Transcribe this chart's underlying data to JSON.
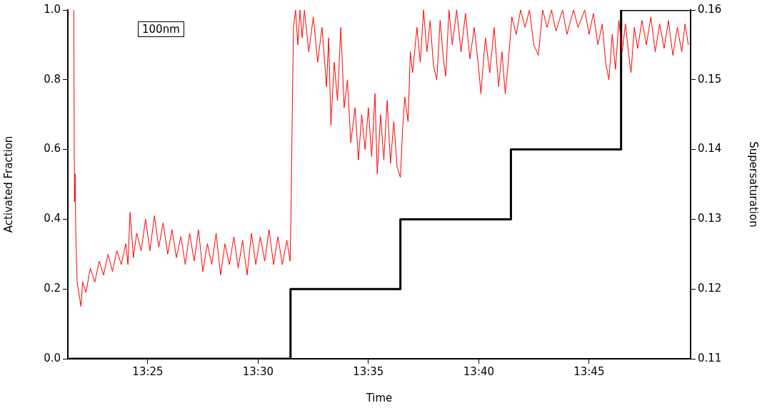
{
  "chart_data": {
    "type": "line",
    "xlabel": "Time",
    "ylabel": "Activated Fraction",
    "y2label": "Supersaturation",
    "annotations": [
      "100nm"
    ],
    "xlim": [
      13.3563,
      13.8267
    ],
    "xticks": [
      {
        "value": 13.4167,
        "label": "13:25"
      },
      {
        "value": 13.5,
        "label": "13:30"
      },
      {
        "value": 13.5833,
        "label": "13:35"
      },
      {
        "value": 13.6667,
        "label": "13:40"
      },
      {
        "value": 13.75,
        "label": "13:45"
      }
    ],
    "ylim": [
      0,
      1
    ],
    "yticks": [
      {
        "value": 0,
        "label": "0.0"
      },
      {
        "value": 0.2,
        "label": "0.2"
      },
      {
        "value": 0.4,
        "label": "0.4"
      },
      {
        "value": 0.6,
        "label": "0.6"
      },
      {
        "value": 0.8,
        "label": "0.8"
      },
      {
        "value": 1,
        "label": "1.0"
      }
    ],
    "y2lim": [
      0.11,
      0.16
    ],
    "y2ticks": [
      0.11,
      0.12,
      0.13,
      0.14,
      0.15,
      0.16
    ],
    "grid": false,
    "legend": false,
    "marker": "none",
    "line_style": "solid",
    "series": [
      {
        "color": "#ff0000",
        "x": [
          13.3608,
          13.3613,
          13.3618,
          13.3623,
          13.3633,
          13.365,
          13.3662,
          13.3675,
          13.37,
          13.3733,
          13.3767,
          13.38,
          13.3833,
          13.3867,
          13.39,
          13.3933,
          13.3967,
          13.4,
          13.4017,
          13.4033,
          13.4058,
          13.4083,
          13.4117,
          13.415,
          13.4183,
          13.4217,
          13.425,
          13.4283,
          13.4317,
          13.435,
          13.4383,
          13.4417,
          13.445,
          13.4483,
          13.4517,
          13.455,
          13.4583,
          13.4617,
          13.465,
          13.4683,
          13.4717,
          13.475,
          13.4783,
          13.4817,
          13.485,
          13.4883,
          13.4917,
          13.495,
          13.4983,
          13.5017,
          13.505,
          13.5083,
          13.5117,
          13.515,
          13.5183,
          13.5217,
          13.5242,
          13.525,
          13.5258,
          13.5267,
          13.5283,
          13.53,
          13.5317,
          13.5333,
          13.535,
          13.5383,
          13.5417,
          13.545,
          13.5483,
          13.5517,
          13.5533,
          13.555,
          13.5575,
          13.56,
          13.5625,
          13.565,
          13.5675,
          13.57,
          13.5733,
          13.5758,
          13.5783,
          13.5808,
          13.5833,
          13.5858,
          13.5883,
          13.59,
          13.5925,
          13.595,
          13.5975,
          13.6,
          13.6025,
          13.605,
          13.6075,
          13.6092,
          13.6108,
          13.6133,
          13.615,
          13.6167,
          13.62,
          13.6225,
          13.625,
          13.6275,
          13.63,
          13.6325,
          13.635,
          13.6375,
          13.64,
          13.6417,
          13.6442,
          13.6467,
          13.65,
          13.6533,
          13.6567,
          13.66,
          13.6633,
          13.6667,
          13.6683,
          13.6717,
          13.675,
          13.6783,
          13.6817,
          13.6842,
          13.6867,
          13.6892,
          13.6917,
          13.695,
          13.6983,
          13.7017,
          13.705,
          13.7083,
          13.7117,
          13.715,
          13.7183,
          13.7217,
          13.725,
          13.73,
          13.7333,
          13.7383,
          13.7417,
          13.7467,
          13.75,
          13.7533,
          13.7567,
          13.76,
          13.7625,
          13.765,
          13.7675,
          13.77,
          13.7725,
          13.775,
          13.7775,
          13.78,
          13.7817,
          13.7842,
          13.7867,
          13.79,
          13.7933,
          13.7967,
          13.8,
          13.8033,
          13.8067,
          13.81,
          13.8133,
          13.8167,
          13.82,
          13.8225,
          13.825
        ],
        "values": [
          1.0,
          0.45,
          0.53,
          0.36,
          0.22,
          0.18,
          0.15,
          0.22,
          0.19,
          0.26,
          0.22,
          0.28,
          0.24,
          0.3,
          0.25,
          0.31,
          0.27,
          0.33,
          0.27,
          0.42,
          0.29,
          0.36,
          0.31,
          0.4,
          0.31,
          0.41,
          0.32,
          0.39,
          0.3,
          0.37,
          0.29,
          0.35,
          0.27,
          0.36,
          0.28,
          0.37,
          0.25,
          0.33,
          0.27,
          0.36,
          0.24,
          0.33,
          0.27,
          0.35,
          0.26,
          0.34,
          0.24,
          0.36,
          0.27,
          0.35,
          0.28,
          0.37,
          0.27,
          0.35,
          0.27,
          0.34,
          0.28,
          0.45,
          0.7,
          0.95,
          1.0,
          0.9,
          1.0,
          0.92,
          1.0,
          0.88,
          0.98,
          0.85,
          0.95,
          0.78,
          0.92,
          0.67,
          0.85,
          0.74,
          0.95,
          0.72,
          0.8,
          0.62,
          0.72,
          0.57,
          0.7,
          0.6,
          0.72,
          0.58,
          0.76,
          0.53,
          0.7,
          0.57,
          0.74,
          0.56,
          0.68,
          0.55,
          0.52,
          0.66,
          0.75,
          0.68,
          0.88,
          0.82,
          0.95,
          0.85,
          1.0,
          0.88,
          0.97,
          0.84,
          0.8,
          0.97,
          0.86,
          0.81,
          1.0,
          0.9,
          1.0,
          0.88,
          0.99,
          0.86,
          0.95,
          0.83,
          0.76,
          0.92,
          0.82,
          0.95,
          0.78,
          0.88,
          0.76,
          0.86,
          0.98,
          0.93,
          1.0,
          0.95,
          1.0,
          0.9,
          0.87,
          1.0,
          0.95,
          1.0,
          0.94,
          1.0,
          0.93,
          1.0,
          0.95,
          1.0,
          0.93,
          0.99,
          0.9,
          0.96,
          0.85,
          0.8,
          0.93,
          0.83,
          0.97,
          0.88,
          0.96,
          0.87,
          0.82,
          0.95,
          0.89,
          0.97,
          0.9,
          0.98,
          0.88,
          0.96,
          0.89,
          0.97,
          0.87,
          0.95,
          0.88,
          0.96,
          0.9
        ]
      },
      {
        "type": "step",
        "axis": "y2",
        "color": "#000000",
        "x": [
          13.3575,
          13.5245,
          13.6075,
          13.691,
          13.7742,
          13.826
        ],
        "values": [
          0.11,
          0.12,
          0.13,
          0.14,
          0.16,
          0.16
        ]
      }
    ]
  }
}
